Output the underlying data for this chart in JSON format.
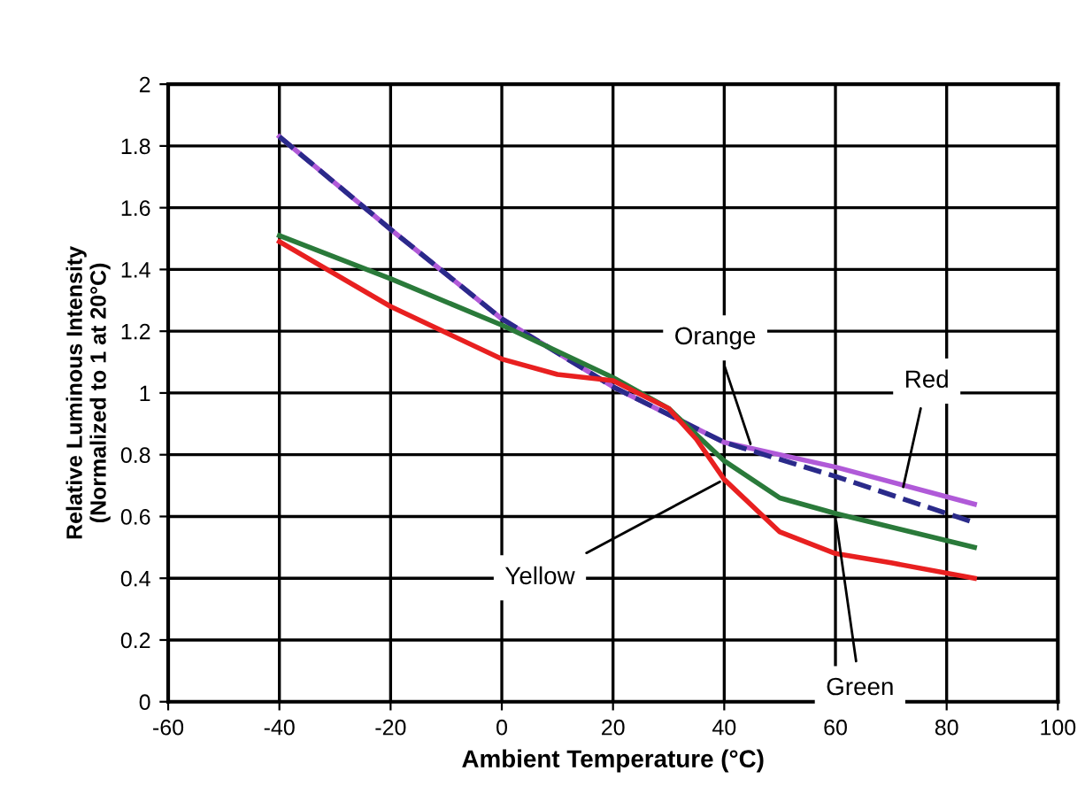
{
  "chart_data": {
    "type": "line",
    "xlabel": "Ambient Temperature (°C)",
    "ylabel": "Relative Luminous Intensity\n(Normalized to 1 at 20°C)",
    "xlim": [
      -60,
      100
    ],
    "xticks": [
      -60,
      -40,
      -20,
      0,
      20,
      40,
      60,
      80,
      100
    ],
    "ylim": [
      0,
      2
    ],
    "yticks": [
      0,
      0.2,
      0.4,
      0.6,
      0.8,
      1,
      1.2,
      1.4,
      1.6,
      1.8,
      2
    ],
    "grid": true,
    "marker": "none",
    "series": [
      {
        "color": "#b05ad8",
        "x": [
          -40,
          -20,
          0,
          20,
          40,
          60,
          85
        ],
        "values": [
          1.83,
          1.53,
          1.24,
          1.02,
          0.84,
          0.76,
          0.64
        ]
      },
      {
        "color": "#2a2a8a",
        "line_style": "dashed",
        "x": [
          -40,
          -20,
          0,
          20,
          40,
          60,
          85
        ],
        "values": [
          1.83,
          1.53,
          1.24,
          1.02,
          0.84,
          0.73,
          0.58
        ]
      },
      {
        "color": "#2a7a3a",
        "x": [
          -40,
          -20,
          0,
          20,
          30,
          40,
          50,
          60,
          85
        ],
        "values": [
          1.51,
          1.37,
          1.22,
          1.05,
          0.95,
          0.78,
          0.66,
          0.61,
          0.5
        ]
      },
      {
        "color": "#e82020",
        "x": [
          -40,
          -20,
          0,
          10,
          20,
          30,
          35,
          40,
          50,
          60,
          70,
          85
        ],
        "values": [
          1.49,
          1.28,
          1.11,
          1.06,
          1.04,
          0.95,
          0.85,
          0.72,
          0.55,
          0.48,
          0.45,
          0.4
        ]
      }
    ],
    "annotations": [
      {
        "text": "Orange",
        "x": 45,
        "y": 0.82
      },
      {
        "text": "Red",
        "x": 72,
        "y": 0.68
      },
      {
        "text": "Yellow",
        "x": 40,
        "y": 0.72
      },
      {
        "text": "Green",
        "x": 60,
        "y": 0.6
      }
    ]
  }
}
